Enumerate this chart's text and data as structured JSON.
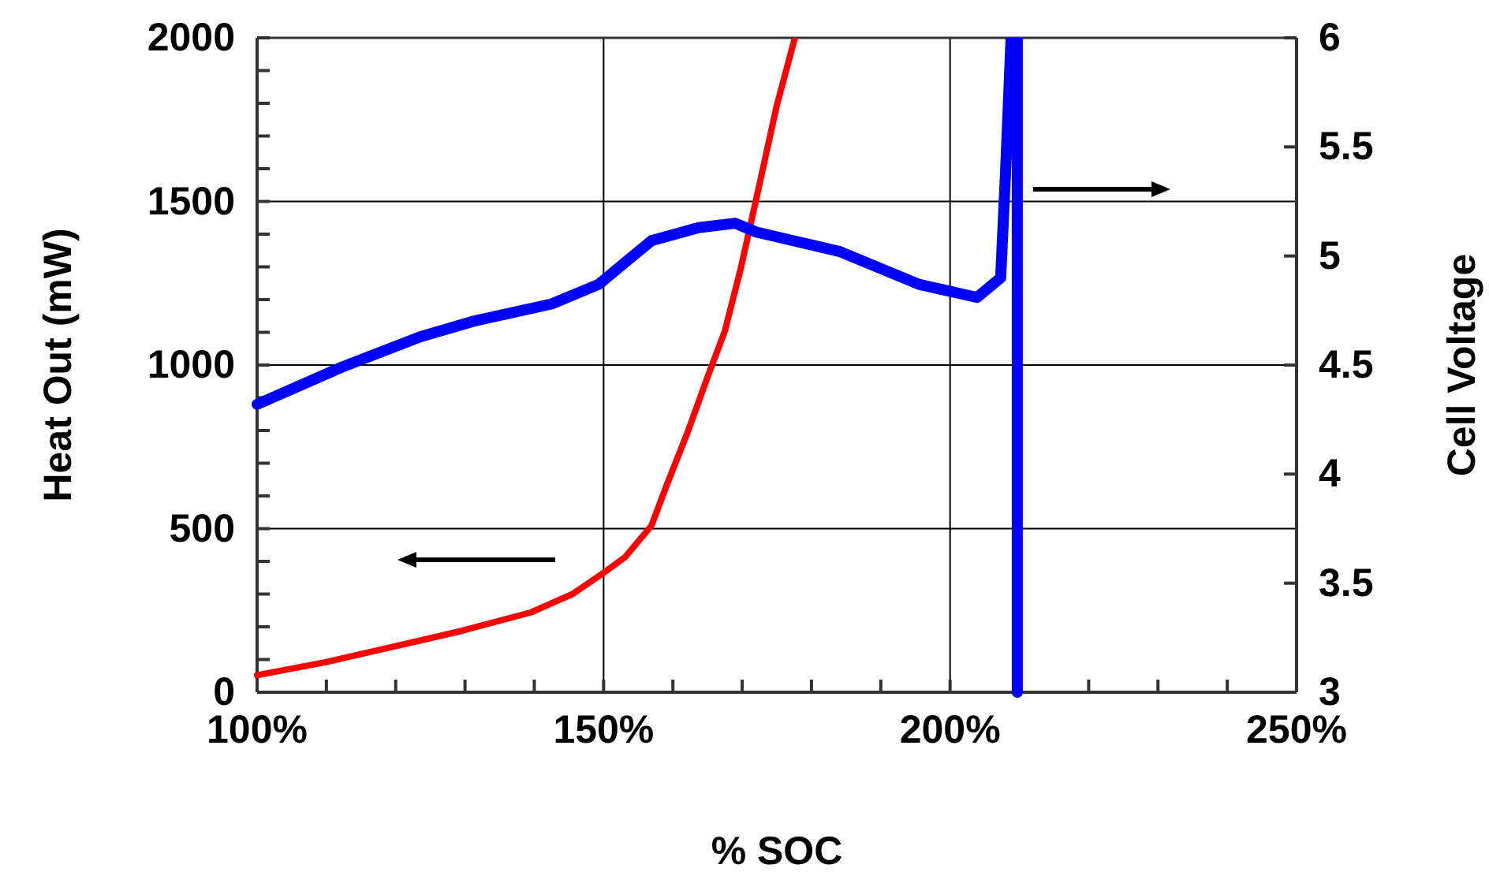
{
  "chart_data": {
    "type": "line",
    "xlabel": "% SOC",
    "ylabel": "Heat Out (mW)",
    "y2label": "Cell Voltage",
    "xlim": [
      100,
      250
    ],
    "xticks": [
      {
        "value": 100,
        "label": "100%"
      },
      {
        "value": 110,
        "label": null
      },
      {
        "value": 120,
        "label": null
      },
      {
        "value": 130,
        "label": null
      },
      {
        "value": 140,
        "label": null
      },
      {
        "value": 150,
        "label": "150%"
      },
      {
        "value": 160,
        "label": null
      },
      {
        "value": 170,
        "label": null
      },
      {
        "value": 180,
        "label": null
      },
      {
        "value": 190,
        "label": null
      },
      {
        "value": 200,
        "label": "200%"
      },
      {
        "value": 210,
        "label": null
      },
      {
        "value": 220,
        "label": null
      },
      {
        "value": 230,
        "label": null
      },
      {
        "value": 240,
        "label": null
      },
      {
        "value": 250,
        "label": "250%"
      }
    ],
    "ylim": [
      0,
      2000
    ],
    "yticks": [
      0,
      {
        "value": 100,
        "label": null
      },
      {
        "value": 200,
        "label": null
      },
      {
        "value": 300,
        "label": null
      },
      {
        "value": 400,
        "label": null
      },
      500,
      {
        "value": 600,
        "label": null
      },
      {
        "value": 700,
        "label": null
      },
      {
        "value": 800,
        "label": null
      },
      {
        "value": 900,
        "label": null
      },
      1000,
      {
        "value": 1100,
        "label": null
      },
      {
        "value": 1200,
        "label": null
      },
      {
        "value": 1300,
        "label": null
      },
      {
        "value": 1400,
        "label": null
      },
      1500,
      {
        "value": 1600,
        "label": null
      },
      {
        "value": 1700,
        "label": null
      },
      {
        "value": 1800,
        "label": null
      },
      {
        "value": 1900,
        "label": null
      },
      2000
    ],
    "y2lim": [
      3,
      6
    ],
    "y2ticks": [
      3,
      3.5,
      4,
      4.5,
      5,
      5.5,
      6
    ],
    "grid": true,
    "marker": "none",
    "line_style": "solid",
    "series": [
      {
        "color": "#ff0000",
        "x": [
          100,
          109.9,
          119.8,
          129.6,
          139.5,
          145.5,
          150,
          153.1,
          156.9,
          159.2,
          162.2,
          165.2,
          167.5,
          169.8,
          172,
          175,
          177.6
        ],
        "values": [
          52,
          92,
          140,
          188,
          244,
          300,
          365,
          413,
          509,
          638,
          799,
          975,
          1104,
          1296,
          1505,
          1794,
          2000
        ]
      },
      {
        "color": "#0000ff",
        "axis": "y2",
        "x": [
          100,
          112.2,
          123.6,
          131.1,
          142.5,
          149.3,
          153.1,
          156.9,
          163.7,
          169,
          172,
          184.1,
          195.5,
          203.9,
          207.3,
          208,
          208.8,
          209.7,
          209.7
        ],
        "values": [
          4.32,
          4.49,
          4.63,
          4.7,
          4.78,
          4.87,
          4.97,
          5.07,
          5.13,
          5.15,
          5.11,
          5.02,
          4.87,
          4.81,
          4.9,
          5.38,
          6,
          6,
          3
        ]
      }
    ]
  }
}
